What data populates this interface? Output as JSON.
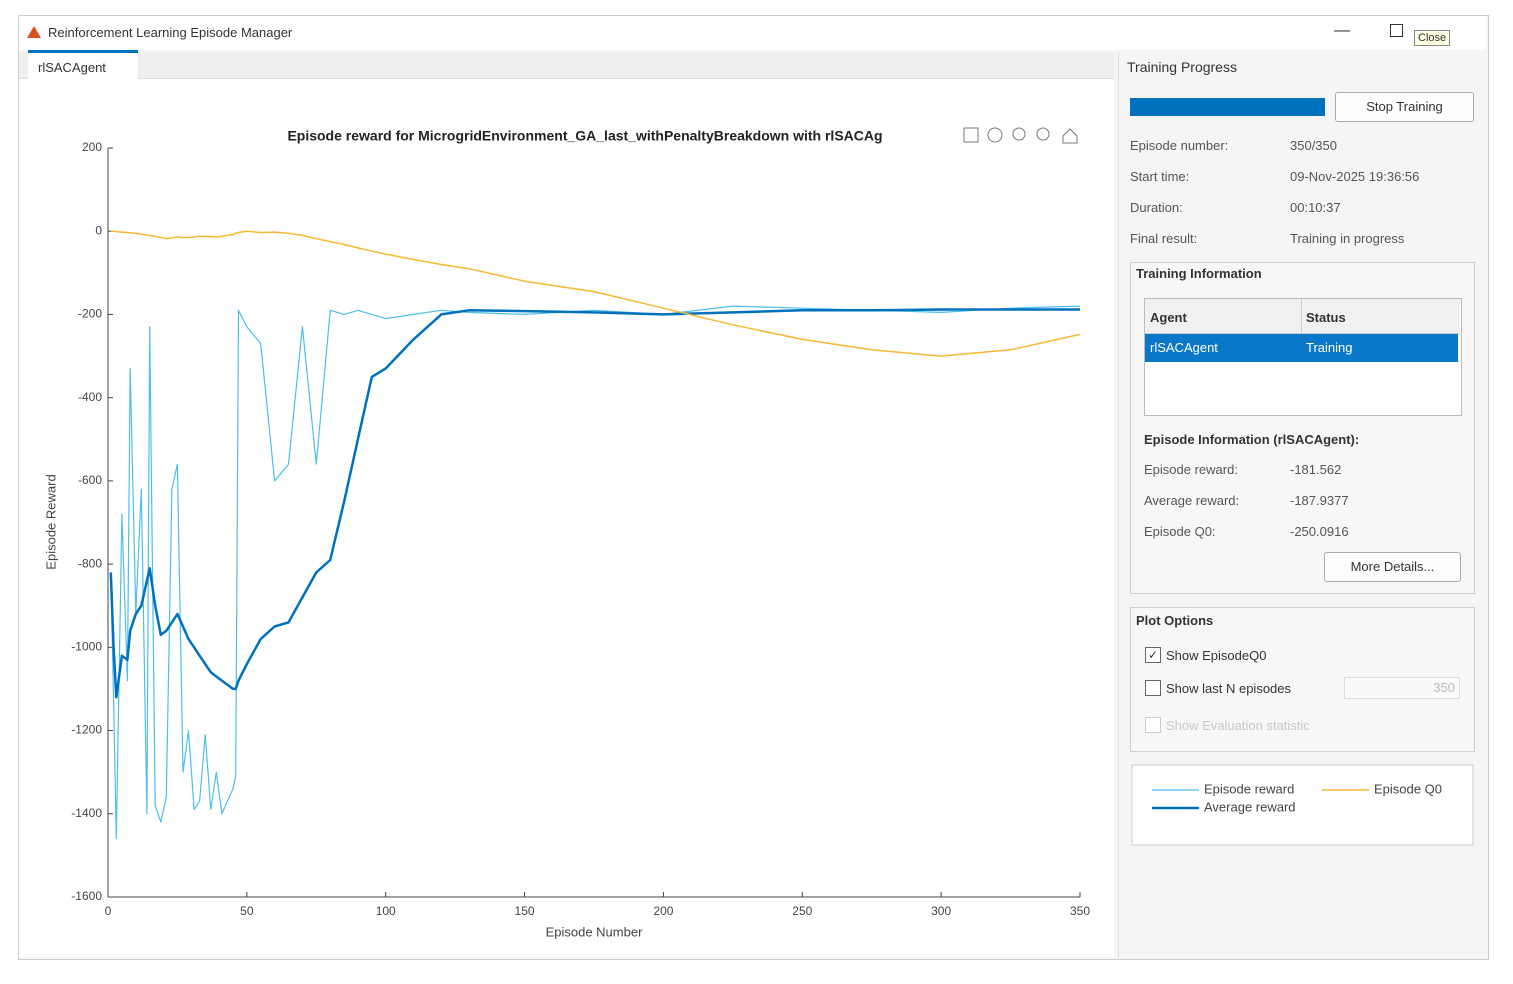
{
  "window": {
    "title": "Reinforcement Learning Episode Manager",
    "tab": "rlSACAgent",
    "close_tooltip": "Close"
  },
  "chart_data": {
    "type": "line",
    "title": "Episode reward for MicrogridEnvironment_GA_last_withPenaltyBreakdown with rlSACAg",
    "xlabel": "Episode Number",
    "ylabel": "Episode Reward",
    "xlim": [
      0,
      350
    ],
    "xticks": [
      0,
      50,
      100,
      150,
      200,
      250,
      300,
      350
    ],
    "ylim": [
      -1600,
      200
    ],
    "yticks": [
      -1600,
      -1400,
      -1200,
      -1000,
      -800,
      -600,
      -400,
      -200,
      0,
      200
    ],
    "x": [
      1,
      2,
      3,
      5,
      7,
      8,
      10,
      12,
      14,
      15,
      17,
      19,
      21,
      23,
      25,
      27,
      29,
      31,
      33,
      35,
      37,
      39,
      41,
      43,
      45,
      46,
      47,
      50,
      55,
      60,
      65,
      70,
      75,
      80,
      85,
      90,
      95,
      100,
      110,
      120,
      130,
      150,
      175,
      200,
      225,
      250,
      275,
      300,
      325,
      350
    ],
    "series": [
      {
        "name": "Episode reward",
        "color": "#4dbeee",
        "width": 1.2,
        "values": [
          -820,
          -1130,
          -1460,
          -680,
          -1080,
          -330,
          -920,
          -620,
          -1400,
          -230,
          -1380,
          -1420,
          -1360,
          -620,
          -560,
          -1300,
          -1200,
          -1390,
          -1370,
          -1210,
          -1390,
          -1300,
          -1400,
          -1370,
          -1340,
          -1310,
          -190,
          -230,
          -270,
          -600,
          -560,
          -230,
          -560,
          -190,
          -200,
          -190,
          -200,
          -210,
          -200,
          -190,
          -195,
          -200,
          -190,
          -200,
          -180,
          -185,
          -190,
          -195,
          -185,
          -180
        ]
      },
      {
        "name": "Average reward",
        "color": "#0072bd",
        "width": 2.5,
        "values": [
          -820,
          -1000,
          -1120,
          -1020,
          -1030,
          -960,
          -920,
          -900,
          -840,
          -810,
          -900,
          -970,
          -960,
          -940,
          -920,
          -950,
          -980,
          -1000,
          -1020,
          -1040,
          -1060,
          -1070,
          -1080,
          -1090,
          -1100,
          -1100,
          -1080,
          -1040,
          -980,
          -950,
          -940,
          -880,
          -820,
          -790,
          -650,
          -500,
          -350,
          -330,
          -260,
          -200,
          -190,
          -192,
          -195,
          -200,
          -195,
          -190,
          -190,
          -188,
          -188,
          -188
        ]
      },
      {
        "name": "Episode Q0",
        "color": "#f7b733",
        "width": 1.5,
        "values": [
          0,
          0,
          -1,
          -2,
          -3,
          -4,
          -5,
          -7,
          -9,
          -10,
          -12,
          -15,
          -18,
          -16,
          -14,
          -15,
          -15,
          -14,
          -12,
          -12,
          -13,
          -14,
          -12,
          -10,
          -8,
          -5,
          -3,
          0,
          -3,
          -2,
          -5,
          -10,
          -18,
          -25,
          -32,
          -40,
          -48,
          -55,
          -68,
          -80,
          -90,
          -120,
          -145,
          -185,
          -225,
          -260,
          -285,
          -300,
          -285,
          -248
        ]
      }
    ]
  },
  "sidebar": {
    "title": "Training Progress",
    "stop_button": "Stop Training",
    "fields": [
      [
        "Episode number:",
        "350/350"
      ],
      [
        "Start time:",
        "09-Nov-2025 19:36:56"
      ],
      [
        "Duration:",
        "00:10:37"
      ],
      [
        "Final result:",
        "Training in progress"
      ]
    ],
    "training_info": {
      "title": "Training Information",
      "headers": [
        "Agent",
        "Status"
      ],
      "rows": [
        [
          "rlSACAgent",
          "Training"
        ]
      ]
    },
    "episode_info": {
      "title": "Episode Information (rlSACAgent):",
      "fields": [
        [
          "Episode reward:",
          "-181.562"
        ],
        [
          "Average reward:",
          "-187.9377"
        ],
        [
          "Episode Q0:",
          "-250.0916"
        ]
      ],
      "button": "More Details..."
    },
    "plot_options": {
      "title": "Plot Options",
      "show_q0": "Show EpisodeQ0",
      "show_last_n": "Show last N episodes",
      "last_n": "350",
      "show_eval": "Show Evaluation statistic"
    }
  }
}
